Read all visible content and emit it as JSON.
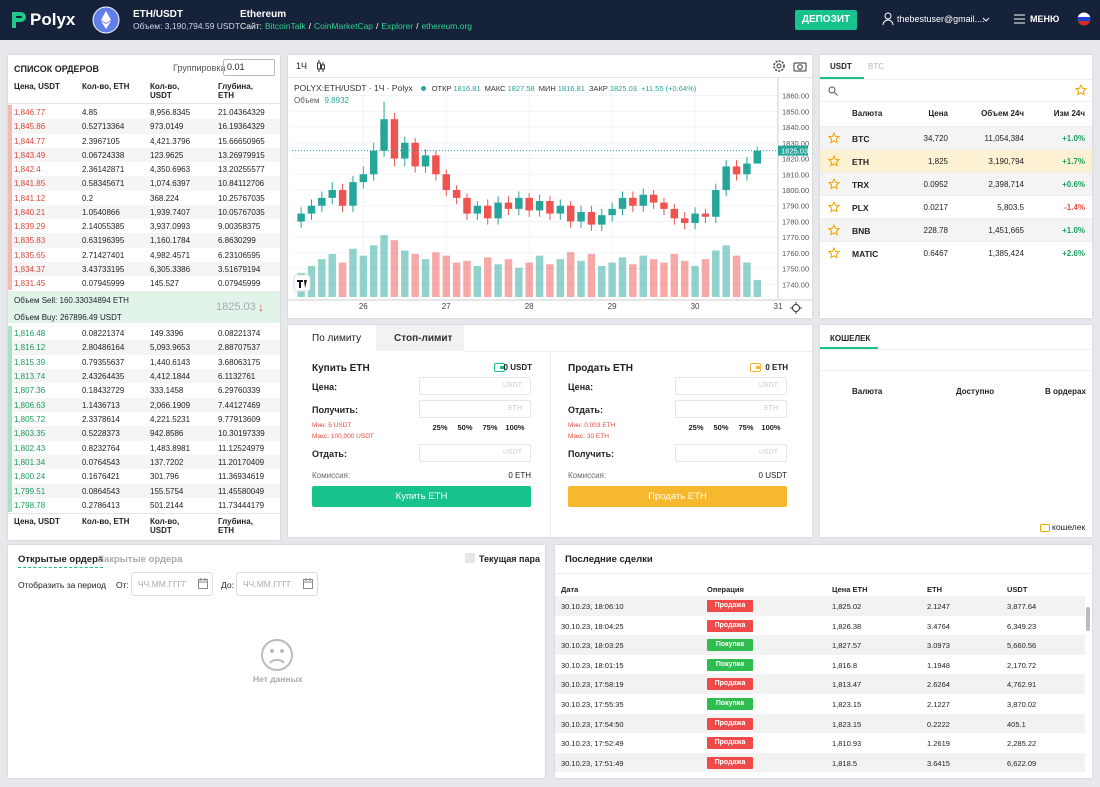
{
  "header": {
    "logo": "Polyx",
    "pair": "ETH/USDT",
    "volume": "Объем: 3,190,794.59  USDT",
    "coin": "Ethereum",
    "site_label": "Сайт:",
    "links": [
      "BitcoinTalk",
      "CoinMarketCap",
      "Explorer",
      "ethereum.org"
    ],
    "separator": "/",
    "deposit": "ДЕПОЗИТ",
    "user": "thebestuser@gmail....",
    "menu": "МЕНЮ"
  },
  "orderbook": {
    "title": "СПИСОК ОРДЕРОВ",
    "grouping_label": "Группировка",
    "grouping": "0.01",
    "columns": [
      "Цена, USDT",
      "Кол-во, ETH",
      "Кол-во, USDT",
      "Глубина, ETH"
    ],
    "sell": [
      [
        "1,846.77",
        "4.85",
        "8,956.8345",
        "21.04364329"
      ],
      [
        "1,845.86",
        "0.52713364",
        "973.0149",
        "16.19364329"
      ],
      [
        "1,844.77",
        "2.3967105",
        "4,421.3796",
        "15.66650965"
      ],
      [
        "1,843.49",
        "0.06724338",
        "123.9625",
        "13.26979915"
      ],
      [
        "1,842.4",
        "2.36142871",
        "4,350.6963",
        "13.20255577"
      ],
      [
        "1,841.85",
        "0.58345671",
        "1,074.6397",
        "10.84112706"
      ],
      [
        "1,841.12",
        "0.2",
        "368.224",
        "10.25767035"
      ],
      [
        "1,840.21",
        "1.0540866",
        "1,939.7407",
        "10.05767035"
      ],
      [
        "1,839.29",
        "2.14055385",
        "3,937.0993",
        "9.00358375"
      ],
      [
        "1,835.83",
        "0.63196395",
        "1,160.1784",
        "6.8630299"
      ],
      [
        "1,835.65",
        "2.71427401",
        "4,982.4571",
        "6.23106595"
      ],
      [
        "1,834.37",
        "3.43733195",
        "6,305.3386",
        "3.51679194"
      ],
      [
        "1,831.45",
        "0.07945999",
        "145.527",
        "0.07945999"
      ]
    ],
    "sell_volume": "Объем Sell: 160.33034894 ETH",
    "last_price": "1825.03",
    "arrow": "↓",
    "buy_volume": "Объем Buy: 267896.49 USDT",
    "buy": [
      [
        "1,816.48",
        "0.08221374",
        "149.3396",
        "0.08221374"
      ],
      [
        "1,816.12",
        "2.80486164",
        "5,093.9653",
        "2.88707537"
      ],
      [
        "1,815.39",
        "0.79355637",
        "1,440.6143",
        "3.68063175"
      ],
      [
        "1,813.74",
        "2.43264435",
        "4,412.1844",
        "6.1132761"
      ],
      [
        "1,807.36",
        "0.18432729",
        "333.1458",
        "6.29760339"
      ],
      [
        "1,806.63",
        "1.1436713",
        "2,066.1909",
        "7.44127469"
      ],
      [
        "1,805.72",
        "2.3378614",
        "4,221.5231",
        "9.77913609"
      ],
      [
        "1,803.35",
        "0.5228373",
        "942.8586",
        "10.30197339"
      ],
      [
        "1,802.43",
        "0.8232764",
        "1,483.8981",
        "11.12524979"
      ],
      [
        "1,801.34",
        "0.0764543",
        "137.7202",
        "11.20170409"
      ],
      [
        "1,800.24",
        "0.1676421",
        "301.796",
        "11.36934619"
      ],
      [
        "1,799.51",
        "0.0864543",
        "155.5754",
        "11.45580049"
      ],
      [
        "1,798.78",
        "0.2786413",
        "501.2144",
        "11.73444179"
      ]
    ]
  },
  "chart": {
    "type": "candlestick",
    "interval": "1Ч",
    "symbol": "POLYX:ETH/USDT · 1Ч · Polyx",
    "ohlc_labels": [
      "ОТКР",
      "МАКС",
      "МИН",
      "ЗАКР"
    ],
    "change": "+11.55 (+0.64%)",
    "volume_label": "Объем",
    "up_color": "#26a69a",
    "down_color": "#ef5350",
    "x": [
      25.25,
      25.375,
      25.5,
      25.625,
      25.75,
      25.875,
      26,
      26.125,
      26.25,
      26.375,
      26.5,
      26.625,
      26.75,
      26.875,
      27,
      27.125,
      27.25,
      27.375,
      27.5,
      27.625,
      27.75,
      27.875,
      28,
      28.125,
      28.25,
      28.375,
      28.5,
      28.625,
      28.75,
      28.875,
      29,
      29.125,
      29.25,
      29.375,
      29.5,
      29.625,
      29.75,
      29.875,
      30,
      30.125,
      30.25,
      30.375,
      30.5,
      30.625,
      30.75
    ],
    "open": [
      1780,
      1785,
      1790,
      1795,
      1800,
      1790,
      1805,
      1810,
      1825,
      1845,
      1820,
      1830,
      1815,
      1822,
      1810,
      1800,
      1795,
      1785,
      1790,
      1782,
      1792,
      1788,
      1795,
      1787,
      1793,
      1785,
      1790,
      1780,
      1786,
      1778,
      1784,
      1788,
      1795,
      1790,
      1797,
      1792,
      1788,
      1782,
      1779,
      1785,
      1783,
      1800,
      1815,
      1810,
      1816.81
    ],
    "high": [
      1789,
      1794,
      1799,
      1805,
      1804,
      1809,
      1815,
      1830,
      1856,
      1849,
      1834,
      1833,
      1826,
      1825,
      1813,
      1803,
      1798,
      1793,
      1794,
      1796,
      1796,
      1799,
      1798,
      1797,
      1796,
      1794,
      1793,
      1790,
      1790,
      1788,
      1792,
      1799,
      1799,
      1801,
      1800,
      1795,
      1791,
      1786,
      1789,
      1788,
      1804,
      1819,
      1819,
      1821,
      1827.58
    ],
    "low": [
      1776,
      1781,
      1786,
      1791,
      1786,
      1786,
      1801,
      1806,
      1821,
      1815,
      1815,
      1811,
      1811,
      1806,
      1796,
      1791,
      1781,
      1781,
      1778,
      1778,
      1784,
      1784,
      1783,
      1783,
      1781,
      1781,
      1776,
      1776,
      1774,
      1774,
      1780,
      1784,
      1786,
      1786,
      1788,
      1784,
      1778,
      1775,
      1775,
      1779,
      1779,
      1796,
      1806,
      1806,
      1816.81
    ],
    "close": [
      1785,
      1790,
      1795,
      1800,
      1790,
      1805,
      1810,
      1825,
      1845,
      1820,
      1830,
      1815,
      1822,
      1810,
      1800,
      1795,
      1785,
      1790,
      1782,
      1792,
      1788,
      1795,
      1787,
      1793,
      1785,
      1790,
      1780,
      1786,
      1778,
      1784,
      1788,
      1795,
      1790,
      1797,
      1792,
      1788,
      1782,
      1779,
      1785,
      1783,
      1800,
      1815,
      1810,
      1816.81,
      1825.03
    ],
    "volume": [
      14,
      18,
      22,
      25,
      20,
      28,
      24,
      30,
      36,
      33,
      27,
      25,
      22,
      26,
      24,
      20,
      21,
      18,
      23,
      19,
      22,
      17,
      20,
      24,
      19,
      22,
      26,
      21,
      25,
      18,
      20,
      23,
      19,
      24,
      22,
      20,
      25,
      21,
      18,
      22,
      27,
      30,
      24,
      20,
      9.8932
    ],
    "ylim": [
      1732,
      1868
    ],
    "yticks": [
      {
        "value": 1740,
        "label": "1740.00"
      },
      {
        "value": 1750,
        "label": "1750.00"
      },
      {
        "value": 1760,
        "label": "1760.00"
      },
      {
        "value": 1770,
        "label": "1770.00"
      },
      {
        "value": 1780,
        "label": "1780.00"
      },
      {
        "value": 1790,
        "label": "1790.00"
      },
      {
        "value": 1800,
        "label": "1800.00"
      },
      {
        "value": 1810,
        "label": "1810.00"
      },
      {
        "value": 1820,
        "label": "1820.00"
      },
      {
        "value": 1830,
        "label": "1830.00"
      },
      {
        "value": 1840,
        "label": "1840.00"
      },
      {
        "value": 1850,
        "label": "1850.00"
      },
      {
        "value": 1860,
        "label": "1860.00"
      }
    ],
    "xlim": [
      25.14,
      31
    ],
    "xticks": [
      26,
      27,
      28,
      29,
      30,
      31
    ],
    "grid": true
  },
  "order_form": {
    "tabs": [
      "По лимиту",
      "Стоп-лимит"
    ],
    "percents": [
      "25%",
      "50%",
      "75%",
      "100%"
    ],
    "buy": {
      "title": "Купить ETH",
      "balance": "0 USDT",
      "color": "#17c28c",
      "fields": [
        {
          "label": "Цена:",
          "unit": "USDT"
        },
        {
          "label": "Получить:",
          "unit": "ETH"
        },
        {
          "label": "Отдать:",
          "unit": "USDT"
        }
      ],
      "min": "Мин: 5 USDT",
      "max": "Макс: 100,000 USDT",
      "fee_label": "Комиссия:",
      "fee": "0 ETH",
      "button": "Купить ETH"
    },
    "sell": {
      "title": "Продать ETH",
      "balance": "0 ETH",
      "color": "#f5b82e",
      "fields": [
        {
          "label": "Цена:",
          "unit": "USDT"
        },
        {
          "label": "Отдать:",
          "unit": "ETH"
        },
        {
          "label": "Получить:",
          "unit": "USDT"
        }
      ],
      "min": "Мин: 0.003 ETH",
      "max": "Макс: 30 ETH",
      "fee_label": "Комиссия:",
      "fee": "0 USDT",
      "button": "Продать ETH"
    }
  },
  "markets": {
    "tabs": [
      "USDT",
      "BTC"
    ],
    "columns": [
      "Валюта",
      "Цена",
      "Объем 24ч",
      "Изм 24ч"
    ],
    "selected": 1,
    "rows": [
      {
        "coin": "BTC",
        "price": "34,720",
        "volume": "11,054,384",
        "change": "+1.0%",
        "color": "#1aa260"
      },
      {
        "coin": "ETH",
        "price": "1,825",
        "volume": "3,190,794",
        "change": "+1.7%",
        "color": "#1aa260"
      },
      {
        "coin": "TRX",
        "price": "0.0952",
        "volume": "2,398,714",
        "change": "+0.6%",
        "color": "#1aa260"
      },
      {
        "coin": "PLX",
        "price": "0.0217",
        "volume": "5,803.5",
        "change": "-1.4%",
        "color": "#e74c3c"
      },
      {
        "coin": "BNB",
        "price": "228.78",
        "volume": "1,451,665",
        "change": "+1.0%",
        "color": "#1aa260"
      },
      {
        "coin": "MATIC",
        "price": "0.6467",
        "volume": "1,385,424",
        "change": "+2.6%",
        "color": "#1aa260"
      }
    ]
  },
  "wallet": {
    "title": "КОШЕЛЕК",
    "columns": [
      "Валюта",
      "Доступно",
      "В ордерах"
    ],
    "link": "кошелек"
  },
  "open_orders": {
    "tabs": [
      "Открытые ордера",
      "Закрытые ордера"
    ],
    "current_pair": "Текущая пара",
    "period_label": "Отобразить за период",
    "from": "От:",
    "to": "До:",
    "placeholder": "ЧЧ.ММ.ГГГГ",
    "empty": "Нет данных"
  },
  "trades": {
    "title": "Последние сделки",
    "columns": [
      "Дата",
      "Операция",
      "Цена ETH",
      "ETH",
      "USDT"
    ],
    "rows": [
      {
        "date": "30.10.23, 18:06:10",
        "operation": "Продажа",
        "color": "#ef4a4a",
        "price": "1,825.02",
        "eth": "2.1247",
        "usdt": "3,877.64"
      },
      {
        "date": "30.10.23, 18:04:25",
        "operation": "Продажа",
        "color": "#ef4a4a",
        "price": "1,826.38",
        "eth": "3.4764",
        "usdt": "6,349.23"
      },
      {
        "date": "30.10.23, 18:03:25",
        "operation": "Покупка",
        "color": "#2ebd4e",
        "price": "1,827.57",
        "eth": "3.0973",
        "usdt": "5,660.56"
      },
      {
        "date": "30.10.23, 18:01:15",
        "operation": "Покупка",
        "color": "#2ebd4e",
        "price": "1,816.8",
        "eth": "1.1948",
        "usdt": "2,170.72"
      },
      {
        "date": "30.10.23, 17:58:19",
        "operation": "Продажа",
        "color": "#ef4a4a",
        "price": "1,813.47",
        "eth": "2.6264",
        "usdt": "4,762.91"
      },
      {
        "date": "30.10.23, 17:55:35",
        "operation": "Покупка",
        "color": "#2ebd4e",
        "price": "1,823.15",
        "eth": "2.1227",
        "usdt": "3,870.02"
      },
      {
        "date": "30.10.23, 17:54:50",
        "operation": "Продажа",
        "color": "#ef4a4a",
        "price": "1,823.15",
        "eth": "0.2222",
        "usdt": "405.1"
      },
      {
        "date": "30.10.23, 17:52:49",
        "operation": "Продажа",
        "color": "#ef4a4a",
        "price": "1,810.93",
        "eth": "1.2619",
        "usdt": "2,285.22"
      },
      {
        "date": "30.10.23, 17:51:49",
        "operation": "Продажа",
        "color": "#ef4a4a",
        "price": "1,818.5",
        "eth": "3.6415",
        "usdt": "6,622.09"
      }
    ]
  }
}
